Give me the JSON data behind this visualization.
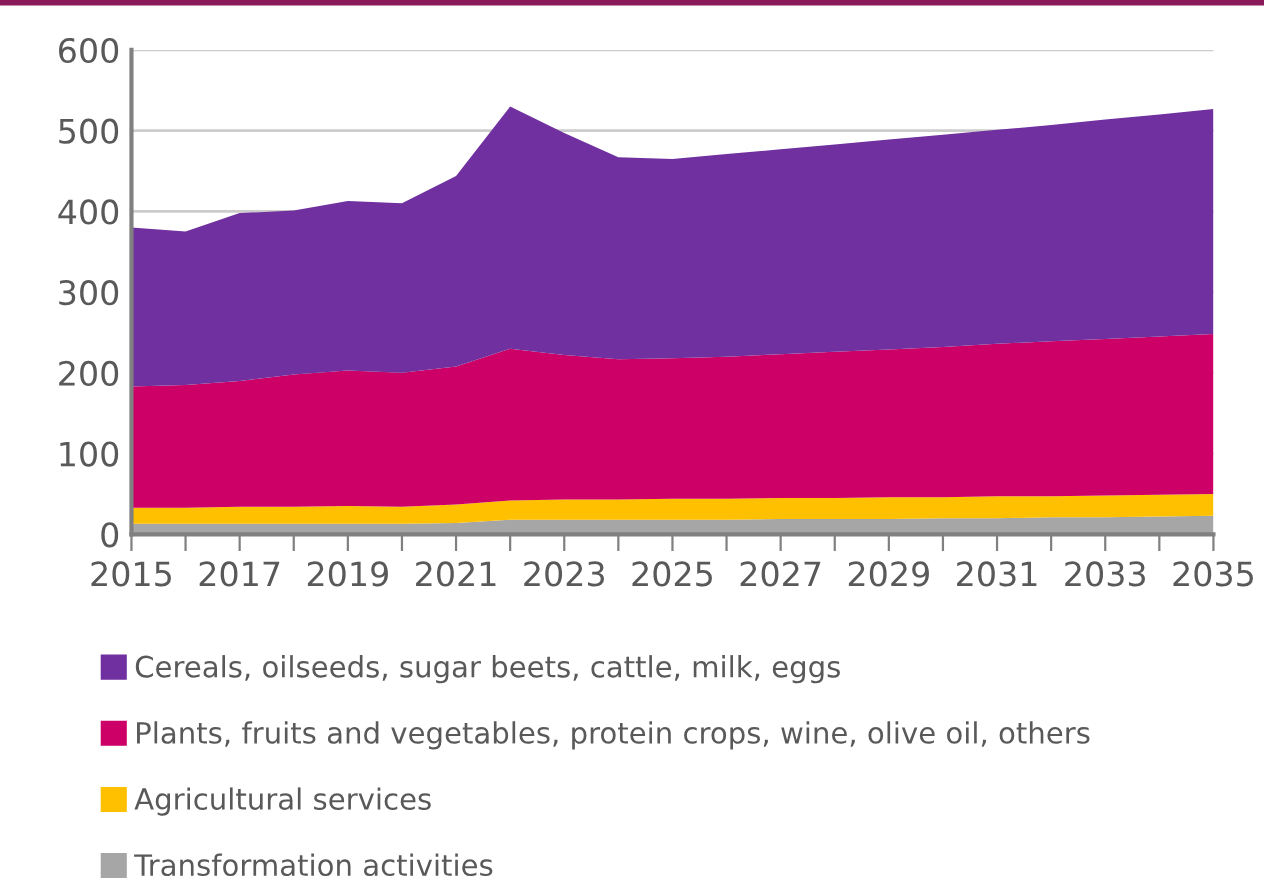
{
  "chart_data": {
    "type": "area",
    "stacked": true,
    "x": [
      2015,
      2016,
      2017,
      2018,
      2019,
      2020,
      2021,
      2022,
      2023,
      2024,
      2025,
      2026,
      2027,
      2028,
      2029,
      2030,
      2031,
      2032,
      2033,
      2034,
      2035
    ],
    "series": [
      {
        "name": "Transformation activities",
        "color": "#a6a6a6",
        "values": [
          13,
          13,
          13,
          13,
          13,
          13,
          14,
          18,
          18,
          18,
          18,
          18,
          19,
          19,
          19,
          20,
          20,
          21,
          21,
          22,
          23
        ]
      },
      {
        "name": "Agricultural services",
        "color": "#ffc000",
        "values": [
          20,
          20,
          21,
          21,
          22,
          21,
          23,
          24,
          25,
          25,
          26,
          26,
          26,
          26,
          27,
          26,
          27,
          26,
          27,
          27,
          27
        ]
      },
      {
        "name": "Plants, fruits and vegetables, protein crops, wine, olive oil, others",
        "color": "#cc0066",
        "values": [
          150,
          152,
          156,
          164,
          168,
          166,
          171,
          188,
          179,
          174,
          174,
          176,
          178,
          181,
          183,
          186,
          189,
          192,
          194,
          196,
          198
        ]
      },
      {
        "name": "Cereals, oilseeds, sugar beets, cattle, milk, eggs",
        "color": "#7030a0",
        "values": [
          197,
          190,
          208,
          203,
          210,
          210,
          236,
          300,
          275,
          250,
          247,
          251,
          254,
          257,
          260,
          263,
          265,
          268,
          272,
          275,
          279
        ]
      }
    ],
    "xlim": [
      2015,
      2035
    ],
    "xticks": [
      2015,
      {
        "value": 2016,
        "label": null
      },
      2017,
      {
        "value": 2018,
        "label": null
      },
      2019,
      {
        "value": 2020,
        "label": null
      },
      2021,
      {
        "value": 2022,
        "label": null
      },
      2023,
      {
        "value": 2024,
        "label": null
      },
      2025,
      {
        "value": 2026,
        "label": null
      },
      2027,
      {
        "value": 2028,
        "label": null
      },
      2029,
      {
        "value": 2030,
        "label": null
      },
      2031,
      {
        "value": 2032,
        "label": null
      },
      2033,
      {
        "value": 2034,
        "label": null
      },
      2035
    ],
    "ylim": [
      0,
      600
    ],
    "yticks": [
      0,
      100,
      200,
      300,
      400,
      500,
      600
    ],
    "grid": "y",
    "legend": "bottom"
  }
}
